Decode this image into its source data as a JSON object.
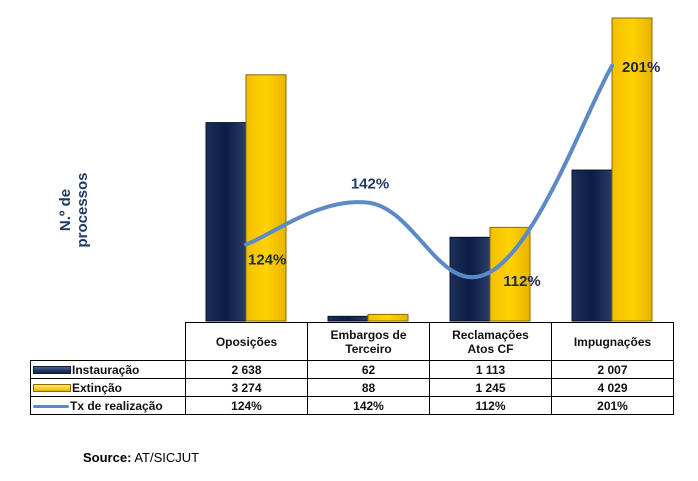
{
  "chart_data": {
    "type": "bar",
    "ylabel": "N.º de processos",
    "categories": [
      "Oposições",
      "Embargos de Terceiro",
      "Reclamações Atos CF",
      "Impugnações"
    ],
    "category_lines": [
      [
        "Oposições"
      ],
      [
        "Embargos de",
        "Terceiro"
      ],
      [
        "Reclamações",
        "Atos CF"
      ],
      [
        "Impugnações"
      ]
    ],
    "series": [
      {
        "name": "Instauração",
        "kind": "bar",
        "color": "#0b1d45",
        "values": [
          2638,
          62,
          1113,
          2007
        ],
        "labels": [
          "2 638",
          "62",
          "1 113",
          "2 007"
        ]
      },
      {
        "name": "Extinção",
        "kind": "bar",
        "color": "#f5c400",
        "values": [
          3274,
          88,
          1245,
          4029
        ],
        "labels": [
          "3 274",
          "88",
          "1 245",
          "4 029"
        ]
      },
      {
        "name": "Tx de realização",
        "kind": "line",
        "color": "#5b8ac6",
        "values": [
          124,
          142,
          112,
          201
        ],
        "labels": [
          "124%",
          "142%",
          "112%",
          "201%"
        ]
      }
    ],
    "legend": "table rows"
  },
  "source": {
    "label": "Source:",
    "text": "AT/SICJUT"
  }
}
